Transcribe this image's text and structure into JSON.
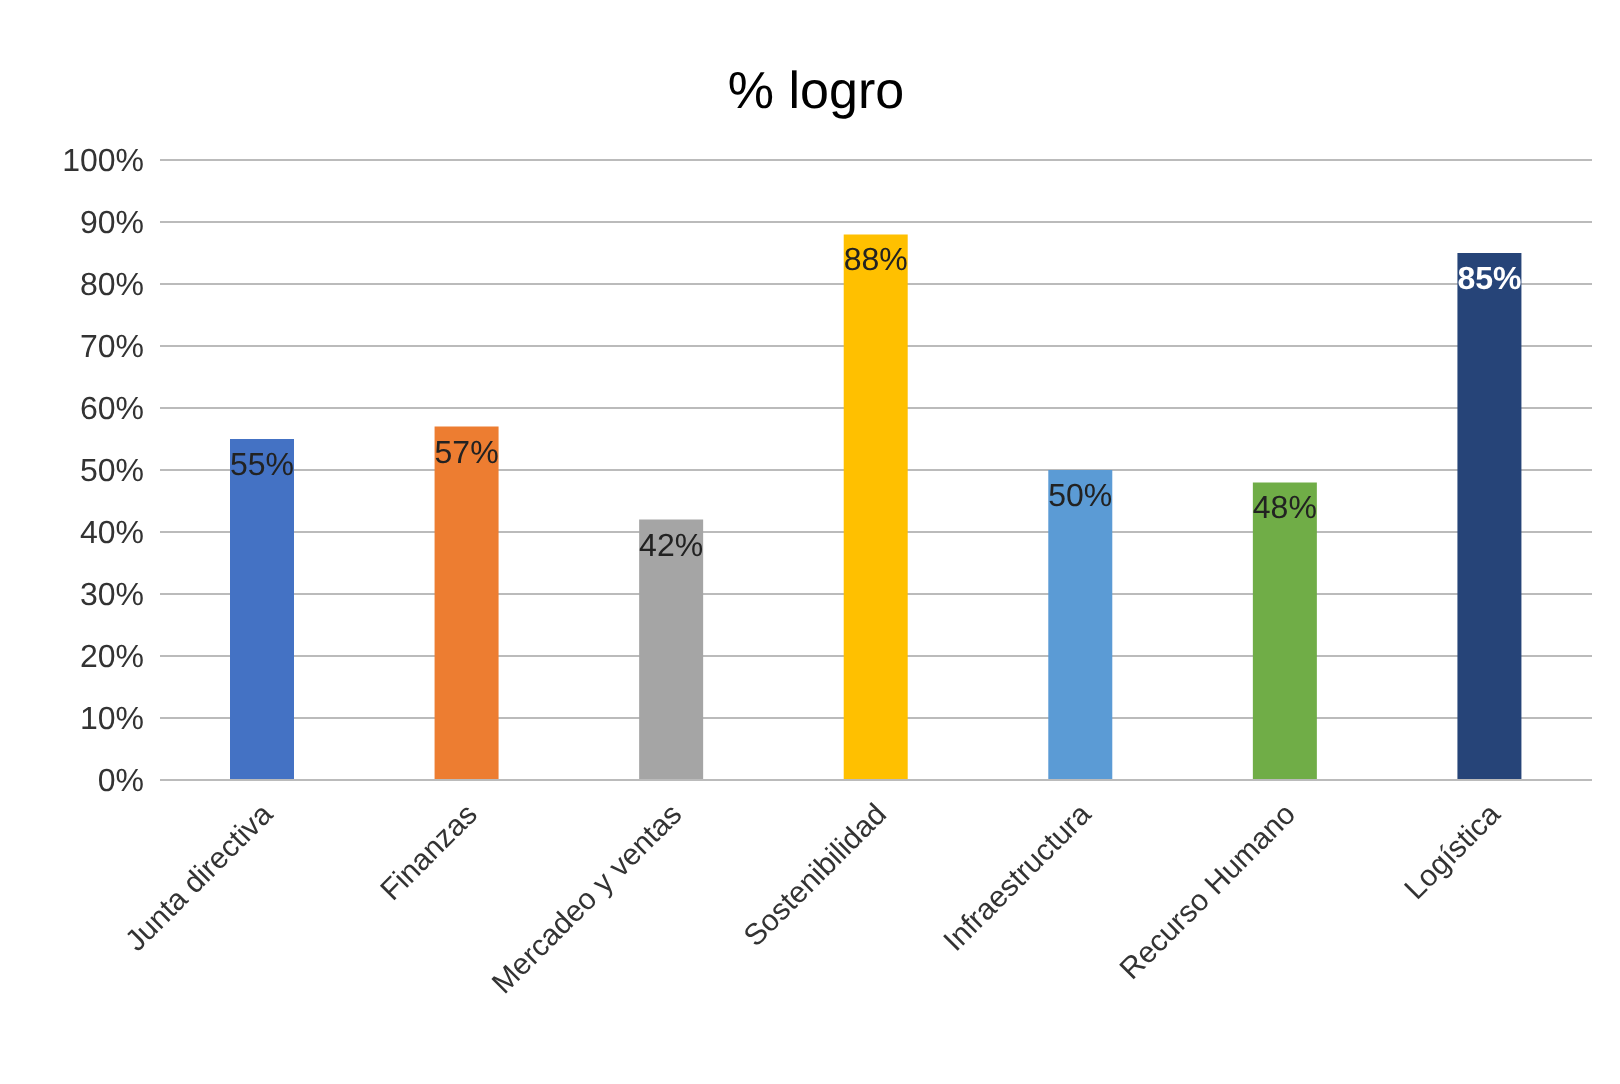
{
  "chart_data": {
    "type": "bar",
    "title": "% logro",
    "categories": [
      "Junta directiva",
      "Finanzas",
      "Mercadeo y ventas",
      "Sostenibilidad",
      "Infraestructura",
      "Recurso Humano",
      "Logística"
    ],
    "values": [
      55,
      57,
      42,
      88,
      50,
      48,
      85
    ],
    "colors": [
      "#4472c4",
      "#ed7d31",
      "#a5a5a5",
      "#ffc000",
      "#5b9bd5",
      "#70ad47",
      "#264478"
    ],
    "value_labels": [
      "55%",
      "57%",
      "42%",
      "88%",
      "50%",
      "48%",
      "85%"
    ],
    "ylim": [
      0,
      100
    ],
    "yticks": [
      {
        "value": 0,
        "label": "0%"
      },
      {
        "value": 10,
        "label": "10%"
      },
      {
        "value": 20,
        "label": "20%"
      },
      {
        "value": 30,
        "label": "30%"
      },
      {
        "value": 40,
        "label": "40%"
      },
      {
        "value": 50,
        "label": "50%"
      },
      {
        "value": 60,
        "label": "60%"
      },
      {
        "value": 70,
        "label": "70%"
      },
      {
        "value": 80,
        "label": "80%"
      },
      {
        "value": 90,
        "label": "90%"
      },
      {
        "value": 100,
        "label": "100%"
      }
    ],
    "grid": "y",
    "legend": false
  }
}
